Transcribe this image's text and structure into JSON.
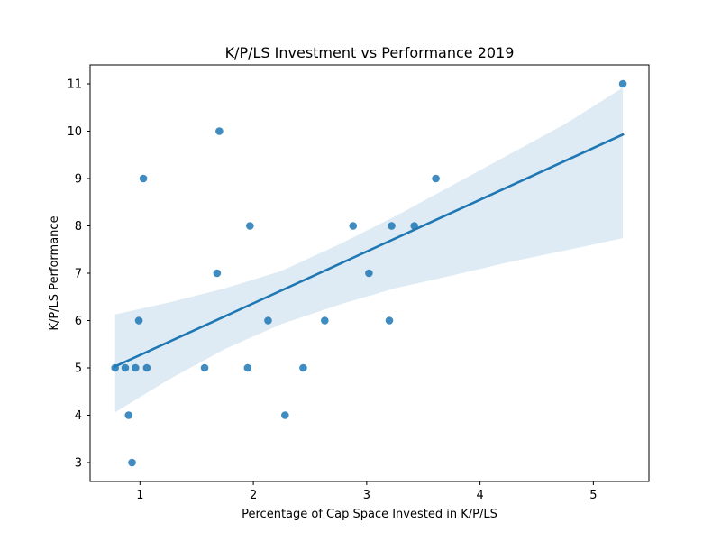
{
  "chart_data": {
    "type": "scatter",
    "title": "K/P/LS Investment vs Performance 2019",
    "xlabel": "Percentage of Cap Space Invested in K/P/LS",
    "ylabel": "K/P/LS Performance",
    "xlim": [
      0.56,
      5.49
    ],
    "ylim": [
      2.6,
      11.4
    ],
    "xticks": [
      "1",
      "2",
      "3",
      "4",
      "5"
    ],
    "yticks": [
      "3",
      "4",
      "5",
      "6",
      "7",
      "8",
      "9",
      "10",
      "11"
    ],
    "grid": false,
    "points": [
      {
        "x": 0.78,
        "y": 5
      },
      {
        "x": 0.87,
        "y": 5
      },
      {
        "x": 0.9,
        "y": 4
      },
      {
        "x": 0.93,
        "y": 3
      },
      {
        "x": 0.96,
        "y": 5
      },
      {
        "x": 0.99,
        "y": 6
      },
      {
        "x": 1.03,
        "y": 9
      },
      {
        "x": 1.06,
        "y": 5
      },
      {
        "x": 1.57,
        "y": 5
      },
      {
        "x": 1.68,
        "y": 7
      },
      {
        "x": 1.7,
        "y": 10
      },
      {
        "x": 1.95,
        "y": 5
      },
      {
        "x": 1.97,
        "y": 8
      },
      {
        "x": 2.13,
        "y": 6
      },
      {
        "x": 2.28,
        "y": 4
      },
      {
        "x": 2.44,
        "y": 5
      },
      {
        "x": 2.63,
        "y": 6
      },
      {
        "x": 2.88,
        "y": 8
      },
      {
        "x": 3.02,
        "y": 7
      },
      {
        "x": 3.2,
        "y": 6
      },
      {
        "x": 3.22,
        "y": 8
      },
      {
        "x": 3.42,
        "y": 8
      },
      {
        "x": 3.61,
        "y": 9
      },
      {
        "x": 5.26,
        "y": 11
      }
    ],
    "regression_line": {
      "x": [
        0.78,
        5.26
      ],
      "y": [
        5.03,
        9.93
      ]
    },
    "confidence_band": [
      {
        "x": 0.78,
        "lower": 4.06,
        "upper": 6.13
      },
      {
        "x": 1.25,
        "lower": 4.75,
        "upper": 6.38
      },
      {
        "x": 1.75,
        "lower": 5.4,
        "upper": 6.68
      },
      {
        "x": 2.25,
        "lower": 5.93,
        "upper": 7.05
      },
      {
        "x": 2.75,
        "lower": 6.33,
        "upper": 7.6
      },
      {
        "x": 3.25,
        "lower": 6.68,
        "upper": 8.2
      },
      {
        "x": 3.75,
        "lower": 6.95,
        "upper": 8.85
      },
      {
        "x": 4.25,
        "lower": 7.23,
        "upper": 9.5
      },
      {
        "x": 4.75,
        "lower": 7.48,
        "upper": 10.15
      },
      {
        "x": 5.26,
        "lower": 7.74,
        "upper": 10.92
      }
    ],
    "colors": {
      "points": "#1f77b4",
      "line": "#1f77b4",
      "band": "#1f77b4"
    }
  }
}
